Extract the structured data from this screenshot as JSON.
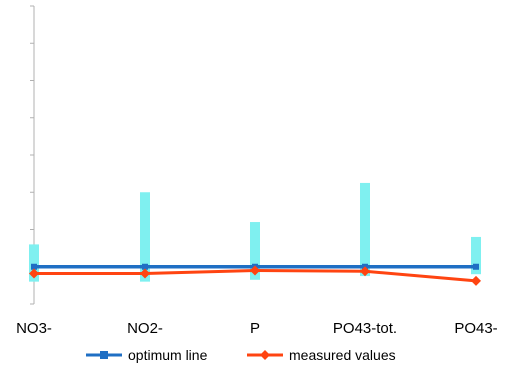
{
  "chart_data": {
    "type": "line",
    "categories": [
      "NO3-",
      "NO2-",
      "P",
      "PO43-tot.",
      "PO43-"
    ],
    "series": [
      {
        "name": "optimum line",
        "values": [
          1.0,
          1.0,
          1.0,
          1.0,
          1.0
        ],
        "color": "#1f6fc4",
        "marker": "square"
      },
      {
        "name": "measured values",
        "values": [
          0.82,
          0.82,
          0.9,
          0.88,
          0.62
        ],
        "color": "#ff4411",
        "marker": "diamond"
      }
    ],
    "ranges": {
      "color": "#7ff0f0",
      "values": [
        [
          0.6,
          1.6
        ],
        [
          0.6,
          3.0
        ],
        [
          0.65,
          2.2
        ],
        [
          0.75,
          3.25
        ],
        [
          0.8,
          1.8
        ]
      ]
    },
    "ylim": [
      0,
      8
    ],
    "yticks": [
      0,
      1,
      2,
      3,
      4,
      5,
      6,
      7,
      8
    ],
    "grid": false,
    "legend": "bottom"
  }
}
